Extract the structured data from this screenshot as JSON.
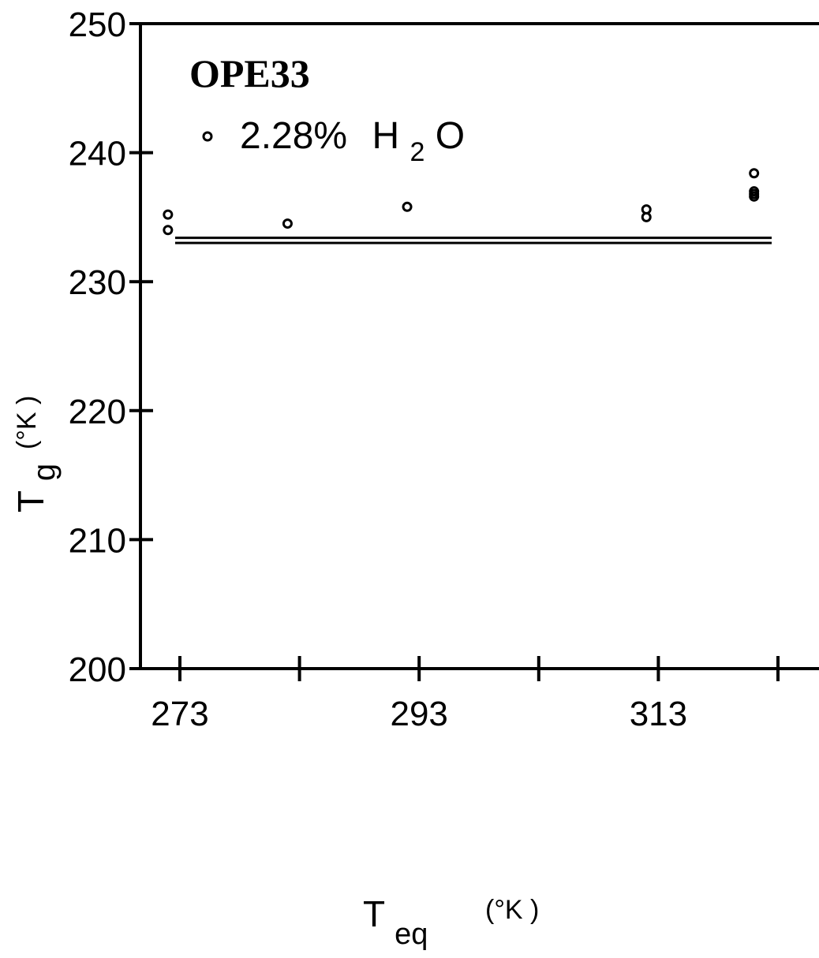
{
  "chart_data": {
    "type": "scatter",
    "title": "",
    "annotation_title": "OPE33",
    "legend": {
      "placement": "top-left",
      "series_label_prefix": "2.28%",
      "series_label_h": "H",
      "series_label_sub": "2",
      "series_label_o": "O"
    },
    "xlabel": {
      "main": "T",
      "sub": "eq",
      "unit": "(°K )"
    },
    "ylabel": {
      "main": "T",
      "sub": "g",
      "unit": "(°K )"
    },
    "xlim": [
      271.5,
      321
    ],
    "ylim": [
      200,
      250
    ],
    "x_ticks": [
      273,
      283,
      293,
      303,
      313,
      323
    ],
    "x_tick_labels": [
      "273",
      "",
      "293",
      "",
      "313",
      ""
    ],
    "y_ticks": [
      200,
      210,
      220,
      230,
      240,
      250
    ],
    "y_tick_labels": [
      "200",
      "210",
      "220",
      "230",
      "240",
      "250"
    ],
    "grid": false,
    "series": [
      {
        "marker": "open-circle",
        "points": [
          {
            "x": 272,
            "y": 235.2
          },
          {
            "x": 272,
            "y": 234.0
          },
          {
            "x": 282,
            "y": 234.5
          },
          {
            "x": 292,
            "y": 235.8
          },
          {
            "x": 312,
            "y": 235.6
          },
          {
            "x": 312,
            "y": 235.0
          },
          {
            "x": 321,
            "y": 238.4
          },
          {
            "x": 321,
            "y": 237.0
          },
          {
            "x": 321,
            "y": 236.8
          },
          {
            "x": 321,
            "y": 236.6
          }
        ]
      }
    ],
    "reference_lines": [
      {
        "y": 233.4
      },
      {
        "y": 233.0
      }
    ]
  }
}
